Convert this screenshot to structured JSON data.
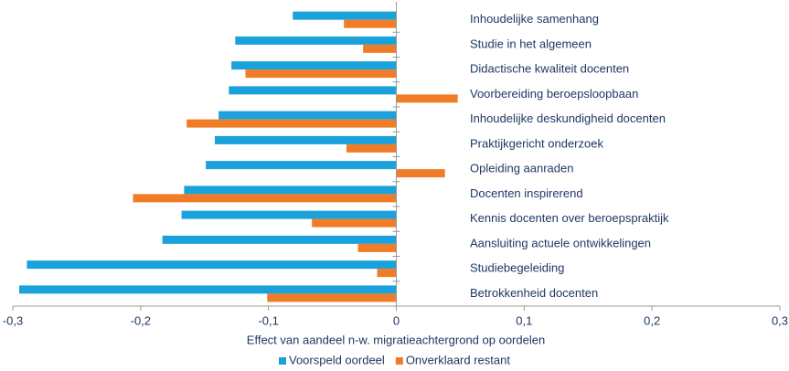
{
  "chart_data": {
    "type": "barh",
    "xlabel": "Effect van aandeel n-w. migratieachtergrond op oordelen",
    "categories": [
      "Inhoudelijke samenhang",
      "Studie in het algemeen",
      "Didactische kwaliteit docenten",
      "Voorbereiding beroepsloopbaan",
      "Inhoudelijke deskundigheid docenten",
      "Praktijkgericht onderzoek",
      "Opleiding aanraden",
      "Docenten inspirerend",
      "Kennis docenten over beroepspraktijk",
      "Aansluiting actuele ontwikkelingen",
      "Studiebegeleiding",
      "Betrokkenheid docenten"
    ],
    "series": [
      {
        "name": "Voorspeld oordeel",
        "color": "#1ba1db",
        "values": [
          -0.081,
          -0.126,
          -0.129,
          -0.131,
          -0.139,
          -0.142,
          -0.149,
          -0.166,
          -0.168,
          -0.183,
          -0.289,
          -0.295
        ]
      },
      {
        "name": "Onverklaard restant",
        "color": "#f07c27",
        "values": [
          -0.041,
          -0.026,
          -0.118,
          0.048,
          -0.164,
          -0.039,
          0.038,
          -0.206,
          -0.066,
          -0.03,
          -0.015,
          -0.101
        ]
      }
    ],
    "xlim": [
      -0.3,
      0.3
    ],
    "xticks": [
      {
        "value": -0.3,
        "label": "-0,3"
      },
      {
        "value": -0.2,
        "label": "-0,2"
      },
      {
        "value": -0.1,
        "label": "-0,1"
      },
      0,
      {
        "value": 0.1,
        "label": "0,1"
      },
      {
        "value": 0.2,
        "label": "0,2"
      },
      {
        "value": 0.3,
        "label": "0,3"
      }
    ],
    "legend": "bottom"
  }
}
